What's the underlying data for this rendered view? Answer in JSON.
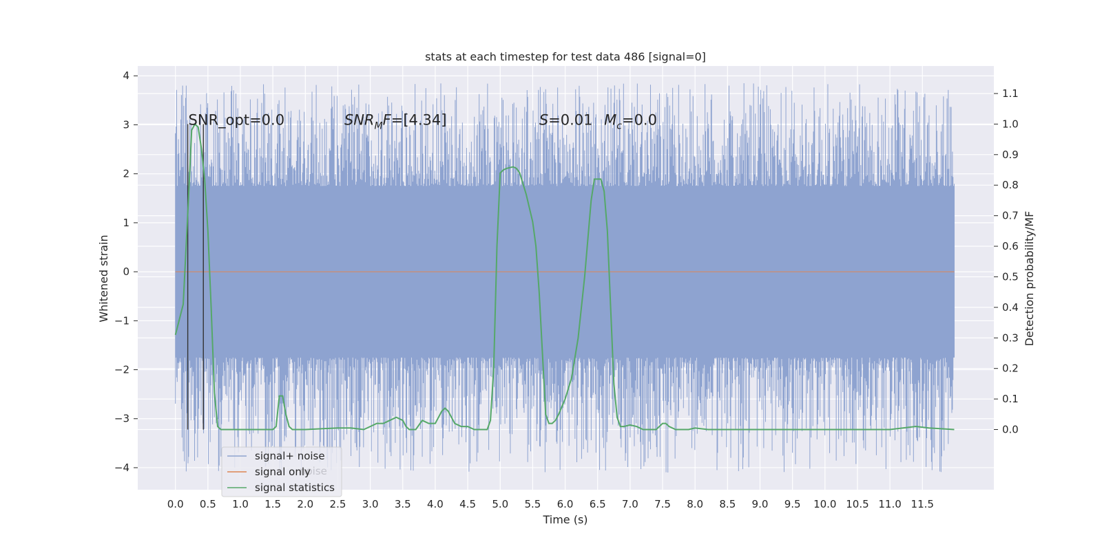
{
  "chart_data": {
    "type": "line",
    "title": "stats at each timestep for test data 486 [signal=0]",
    "xlabel": "Time (s)",
    "ylabel": "Whitened strain",
    "y2label": "Detection probability/MF",
    "xlim": [
      -0.58,
      12.6
    ],
    "ylim": [
      -4.45,
      4.2
    ],
    "y2lim": [
      -0.197,
      1.19
    ],
    "x_ticks": [
      0.0,
      0.5,
      1.0,
      1.5,
      2.0,
      2.5,
      3.0,
      3.5,
      4.0,
      4.5,
      5.0,
      5.5,
      6.0,
      6.5,
      7.0,
      7.5,
      8.0,
      8.5,
      9.0,
      9.5,
      10.0,
      10.5,
      11.0,
      11.5
    ],
    "x_tick_labels": [
      "0.0",
      "0.5",
      "1.0",
      "1.5",
      "2.0",
      "2.5",
      "3.0",
      "3.5",
      "4.0",
      "4.5",
      "5.0",
      "5.5",
      "6.0",
      "6.5",
      "7.0",
      "7.5",
      "8.0",
      "8.5",
      "9.0",
      "9.5",
      "10.0",
      "10.5",
      "11.0",
      "11.5"
    ],
    "y_ticks": [
      -4,
      -3,
      -2,
      -1,
      0,
      1,
      2,
      3,
      4
    ],
    "y_tick_labels": [
      "−4",
      "−3",
      "−2",
      "−1",
      "0",
      "1",
      "2",
      "3",
      "4"
    ],
    "y2_ticks": [
      0.0,
      0.1,
      0.2,
      0.3,
      0.4,
      0.5,
      0.6,
      0.7,
      0.8,
      0.9,
      1.0,
      1.1
    ],
    "y2_tick_labels": [
      "0.0",
      "0.1",
      "0.2",
      "0.3",
      "0.4",
      "0.5",
      "0.6",
      "0.7",
      "0.8",
      "0.9",
      "1.0",
      "1.1"
    ],
    "grid": true,
    "legend_position": "lower-left",
    "legend": [
      "signal+ noise",
      "signal only",
      "signal statistics"
    ],
    "legend_overlap_text": "noise",
    "series": [
      {
        "name": "signal+ noise",
        "color": "#8ea3d0",
        "axis": "left",
        "kind": "noise",
        "x_range": [
          0.0,
          11.99
        ],
        "core_range": [
          -1.75,
          1.75
        ],
        "spike_range": [
          -4.1,
          3.85
        ]
      },
      {
        "name": "signal only",
        "color": "#dd8452",
        "axis": "left",
        "x": [
          0.0,
          11.99
        ],
        "y": [
          0.0,
          0.0
        ]
      },
      {
        "name": "signal statistics",
        "color": "#55a868",
        "axis": "right",
        "x": [
          0.0,
          0.12,
          0.2,
          0.25,
          0.3,
          0.35,
          0.4,
          0.45,
          0.5,
          0.55,
          0.6,
          0.65,
          0.7,
          0.8,
          1.0,
          1.5,
          1.55,
          1.6,
          1.65,
          1.7,
          1.75,
          1.8,
          1.9,
          2.0,
          2.5,
          2.7,
          2.9,
          3.1,
          3.2,
          3.3,
          3.4,
          3.5,
          3.55,
          3.6,
          3.7,
          3.8,
          3.9,
          4.0,
          4.1,
          4.15,
          4.2,
          4.3,
          4.4,
          4.5,
          4.6,
          4.7,
          4.8,
          4.85,
          4.9,
          4.95,
          5.0,
          5.05,
          5.1,
          5.2,
          5.25,
          5.3,
          5.4,
          5.5,
          5.55,
          5.6,
          5.65,
          5.7,
          5.75,
          5.8,
          5.85,
          5.9,
          6.0,
          6.1,
          6.2,
          6.3,
          6.4,
          6.45,
          6.5,
          6.55,
          6.6,
          6.65,
          6.7,
          6.75,
          6.8,
          6.85,
          6.9,
          7.0,
          7.1,
          7.2,
          7.3,
          7.4,
          7.5,
          7.55,
          7.6,
          7.7,
          7.8,
          7.9,
          8.0,
          8.2,
          8.5,
          9.0,
          10.0,
          11.0,
          11.2,
          11.4,
          11.6,
          11.99
        ],
        "y": [
          0.31,
          0.41,
          0.75,
          0.98,
          1.0,
          0.99,
          0.92,
          0.82,
          0.65,
          0.4,
          0.12,
          0.01,
          0.0,
          0.0,
          0.0,
          0.0,
          0.01,
          0.11,
          0.11,
          0.05,
          0.01,
          0.0,
          0.0,
          0.0,
          0.005,
          0.005,
          0.0,
          0.02,
          0.02,
          0.03,
          0.04,
          0.03,
          0.01,
          0.0,
          0.0,
          0.03,
          0.02,
          0.02,
          0.06,
          0.07,
          0.06,
          0.02,
          0.01,
          0.01,
          0.0,
          0.0,
          0.0,
          0.03,
          0.2,
          0.6,
          0.84,
          0.85,
          0.855,
          0.86,
          0.855,
          0.84,
          0.77,
          0.68,
          0.6,
          0.45,
          0.25,
          0.05,
          0.02,
          0.02,
          0.03,
          0.05,
          0.1,
          0.17,
          0.3,
          0.5,
          0.75,
          0.82,
          0.82,
          0.82,
          0.78,
          0.65,
          0.4,
          0.15,
          0.04,
          0.01,
          0.01,
          0.015,
          0.01,
          0.0,
          0.0,
          0.0,
          0.02,
          0.02,
          0.01,
          0.0,
          0.0,
          0.0,
          0.005,
          0.0,
          0.0,
          0.0,
          0.0,
          0.0,
          0.005,
          0.01,
          0.005,
          0.0
        ]
      }
    ],
    "vlines": [
      {
        "x": 0.19,
        "y2_from": 0.0,
        "y2_to": 1.0,
        "color": "#333333"
      },
      {
        "x": 0.43,
        "y2_from": 0.0,
        "y2_to": 1.0,
        "color": "#333333"
      }
    ],
    "annotations": [
      {
        "id": "snr-opt",
        "x": 0.2,
        "y": 3.0,
        "text": "SNR_opt=0.0"
      },
      {
        "id": "snr-mf",
        "x": 2.6,
        "y": 3.0,
        "prefix": "SNR",
        "subscript": "M",
        "suffix_italic": "F",
        "value": "=[4.34]"
      },
      {
        "id": "s-value",
        "x": 5.6,
        "y": 3.0,
        "italic": "S",
        "value": "=0.01"
      },
      {
        "id": "mc-value",
        "x": 6.6,
        "y": 3.0,
        "italic": "M",
        "subscript": "c",
        "value": "=0.0"
      }
    ]
  }
}
